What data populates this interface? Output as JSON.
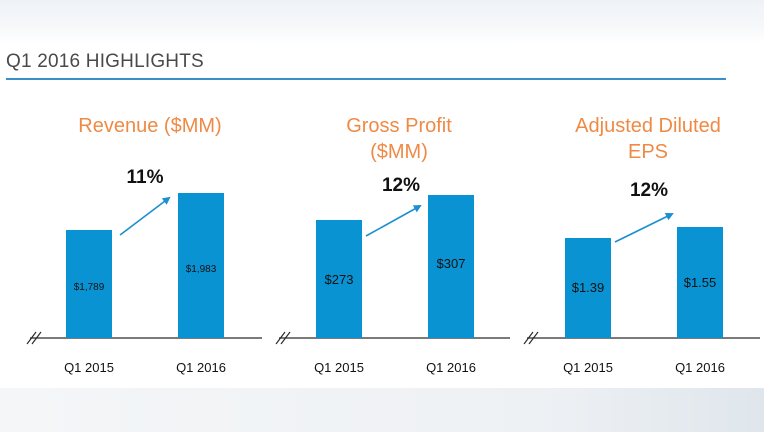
{
  "page": {
    "title": "Q1 2016 HIGHLIGHTS"
  },
  "colors": {
    "bar": "#0a93d3",
    "title": "#ef8a45",
    "rule": "#3a8fc9",
    "arrow": "#1c8fcf"
  },
  "chart_data": [
    {
      "type": "bar",
      "title": "Revenue ($MM)",
      "categories": [
        "Q1 2015",
        "Q1 2016"
      ],
      "values": [
        1789,
        1983
      ],
      "labels": [
        "$1,789",
        "$1,983"
      ],
      "growth": "11%",
      "axis_break": true
    },
    {
      "type": "bar",
      "title": "Gross Profit ($MM)",
      "categories": [
        "Q1 2015",
        "Q1 2016"
      ],
      "values": [
        273,
        307
      ],
      "labels": [
        "$273",
        "$307"
      ],
      "growth": "12%",
      "axis_break": true
    },
    {
      "type": "bar",
      "title": "Adjusted Diluted EPS",
      "categories": [
        "Q1 2015",
        "Q1 2016"
      ],
      "values": [
        1.39,
        1.55
      ],
      "labels": [
        "$1.39",
        "$1.55"
      ],
      "growth": "12%",
      "axis_break": true
    }
  ]
}
